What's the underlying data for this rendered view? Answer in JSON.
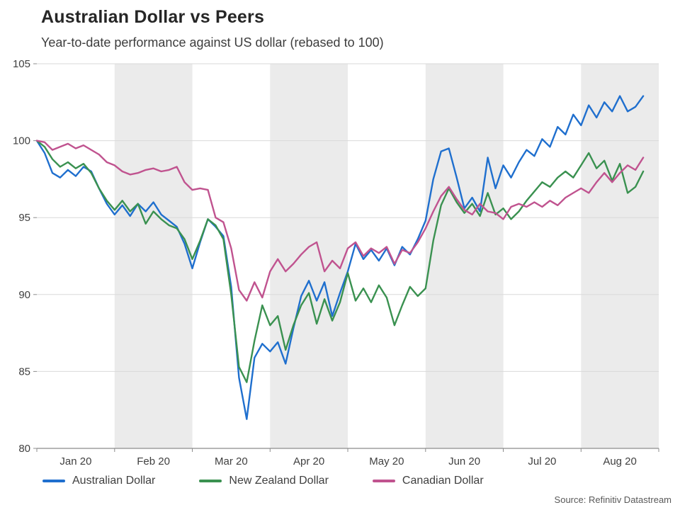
{
  "source": {
    "text": "Source: Refinitiv Datastream"
  },
  "chart_data": {
    "type": "line",
    "title": "Australian Dollar vs Peers",
    "subtitle": "Year-to-date performance against US dollar (rebased to 100)",
    "x_unit": "months since 2020-01-01",
    "x_start": 0,
    "x_step": 0.1,
    "xlim": [
      0,
      8
    ],
    "ylim": [
      80,
      105
    ],
    "y_ticks": [
      80,
      85,
      90,
      95,
      100,
      105
    ],
    "x_tick_labels": [
      "Jan 20",
      "Feb 20",
      "Mar 20",
      "Apr 20",
      "May 20",
      "Jun 20",
      "Jul 20",
      "Aug 20"
    ],
    "shaded_months": [
      1,
      3,
      5,
      7
    ],
    "grid": "horizontal",
    "legend_position": "bottom",
    "colors": {
      "band": "#ebebeb",
      "gridline": "#d9d9d9",
      "axis": "#8c8c8c",
      "tick_label": "#404040"
    },
    "series": [
      {
        "name": "Australian Dollar",
        "color": "#1f6fce",
        "values": [
          100.0,
          99.2,
          97.9,
          97.6,
          98.1,
          97.7,
          98.3,
          98.0,
          96.9,
          95.9,
          95.2,
          95.8,
          95.1,
          95.9,
          95.4,
          96.0,
          95.2,
          94.8,
          94.4,
          93.3,
          91.7,
          93.4,
          94.9,
          94.4,
          93.8,
          90.5,
          84.6,
          81.9,
          85.9,
          86.8,
          86.3,
          86.9,
          85.5,
          87.8,
          89.9,
          90.9,
          89.6,
          90.8,
          88.6,
          90.1,
          91.5,
          93.3,
          92.3,
          92.9,
          92.2,
          93.0,
          91.9,
          93.1,
          92.6,
          93.6,
          94.8,
          97.5,
          99.3,
          99.5,
          97.6,
          95.6,
          96.3,
          95.4,
          98.9,
          96.9,
          98.4,
          97.6,
          98.6,
          99.4,
          99.0,
          100.1,
          99.6,
          100.9,
          100.4,
          101.7,
          101.0,
          102.3,
          101.5,
          102.5,
          101.9,
          102.9,
          101.9,
          102.2,
          102.9
        ]
      },
      {
        "name": "New Zealand Dollar",
        "color": "#3a9150",
        "values": [
          100.0,
          99.6,
          98.8,
          98.3,
          98.6,
          98.2,
          98.5,
          97.9,
          96.9,
          96.1,
          95.5,
          96.1,
          95.4,
          95.9,
          94.6,
          95.4,
          94.9,
          94.5,
          94.3,
          93.6,
          92.3,
          93.5,
          94.9,
          94.5,
          93.6,
          90.0,
          85.3,
          84.3,
          87.0,
          89.3,
          88.0,
          88.6,
          86.4,
          88.0,
          89.3,
          90.1,
          88.1,
          89.7,
          88.3,
          89.5,
          91.4,
          89.6,
          90.4,
          89.5,
          90.6,
          89.8,
          88.0,
          89.3,
          90.5,
          89.9,
          90.4,
          93.5,
          95.8,
          96.9,
          96.0,
          95.3,
          95.9,
          95.1,
          96.6,
          95.2,
          95.6,
          94.9,
          95.4,
          96.1,
          96.7,
          97.3,
          97.0,
          97.6,
          98.0,
          97.6,
          98.4,
          99.2,
          98.2,
          98.7,
          97.4,
          98.5,
          96.6,
          97.0,
          98.0
        ]
      },
      {
        "name": "Canadian Dollar",
        "color": "#c0538f",
        "values": [
          100.0,
          99.9,
          99.4,
          99.6,
          99.8,
          99.5,
          99.7,
          99.4,
          99.1,
          98.6,
          98.4,
          98.0,
          97.8,
          97.9,
          98.1,
          98.2,
          98.0,
          98.1,
          98.3,
          97.3,
          96.8,
          96.9,
          96.8,
          95.0,
          94.7,
          93.0,
          90.3,
          89.6,
          90.8,
          89.8,
          91.5,
          92.3,
          91.5,
          92.0,
          92.6,
          93.1,
          93.4,
          91.5,
          92.2,
          91.7,
          93.0,
          93.4,
          92.5,
          93.0,
          92.7,
          93.1,
          92.0,
          92.9,
          92.7,
          93.4,
          94.3,
          95.4,
          96.4,
          97.0,
          96.2,
          95.5,
          95.2,
          95.9,
          95.4,
          95.3,
          94.9,
          95.7,
          95.9,
          95.7,
          96.0,
          95.7,
          96.1,
          95.8,
          96.3,
          96.6,
          96.9,
          96.6,
          97.3,
          97.9,
          97.3,
          97.9,
          98.4,
          98.1,
          98.9
        ]
      }
    ]
  }
}
